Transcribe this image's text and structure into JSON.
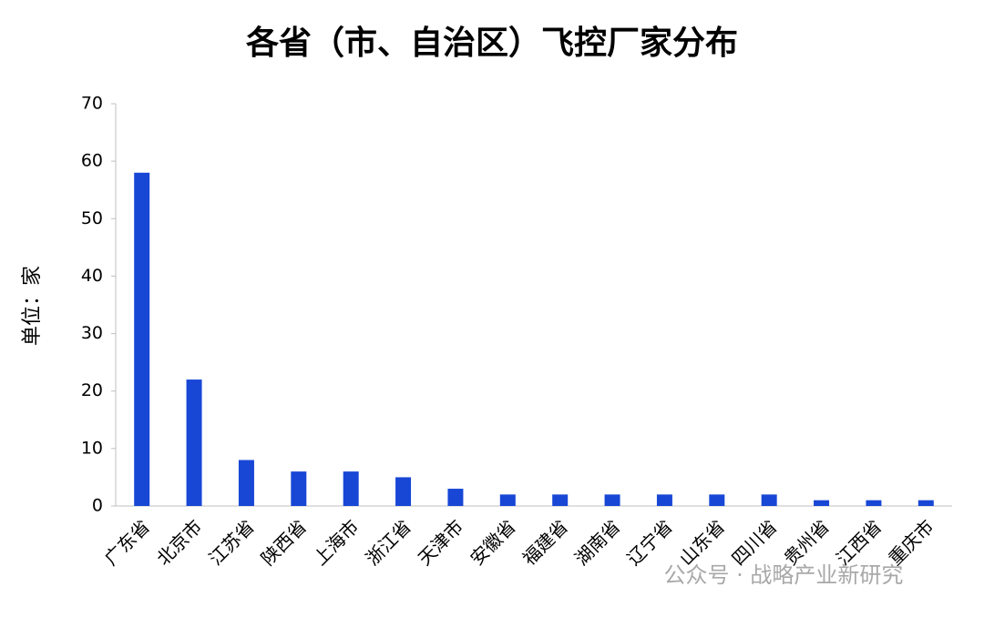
{
  "chart_data": {
    "type": "bar",
    "title": "各省（市、自治区）飞控厂家分布",
    "y_label": "单位：家",
    "categories": [
      "广东省",
      "北京市",
      "江苏省",
      "陕西省",
      "上海市",
      "浙江省",
      "天津市",
      "安徽省",
      "福建省",
      "湖南省",
      "辽宁省",
      "山东省",
      "四川省",
      "贵州省",
      "江西省",
      "重庆市"
    ],
    "values": [
      58,
      22,
      8,
      6,
      6,
      5,
      3,
      2,
      2,
      2,
      2,
      2,
      2,
      1,
      1,
      1
    ],
    "color": "#1847d6",
    "ylim": [
      0,
      70
    ],
    "yticks": [
      0,
      10,
      20,
      30,
      40,
      50,
      60,
      70
    ],
    "grid": false,
    "watermark": "公众号 · 战略产业新研究"
  }
}
